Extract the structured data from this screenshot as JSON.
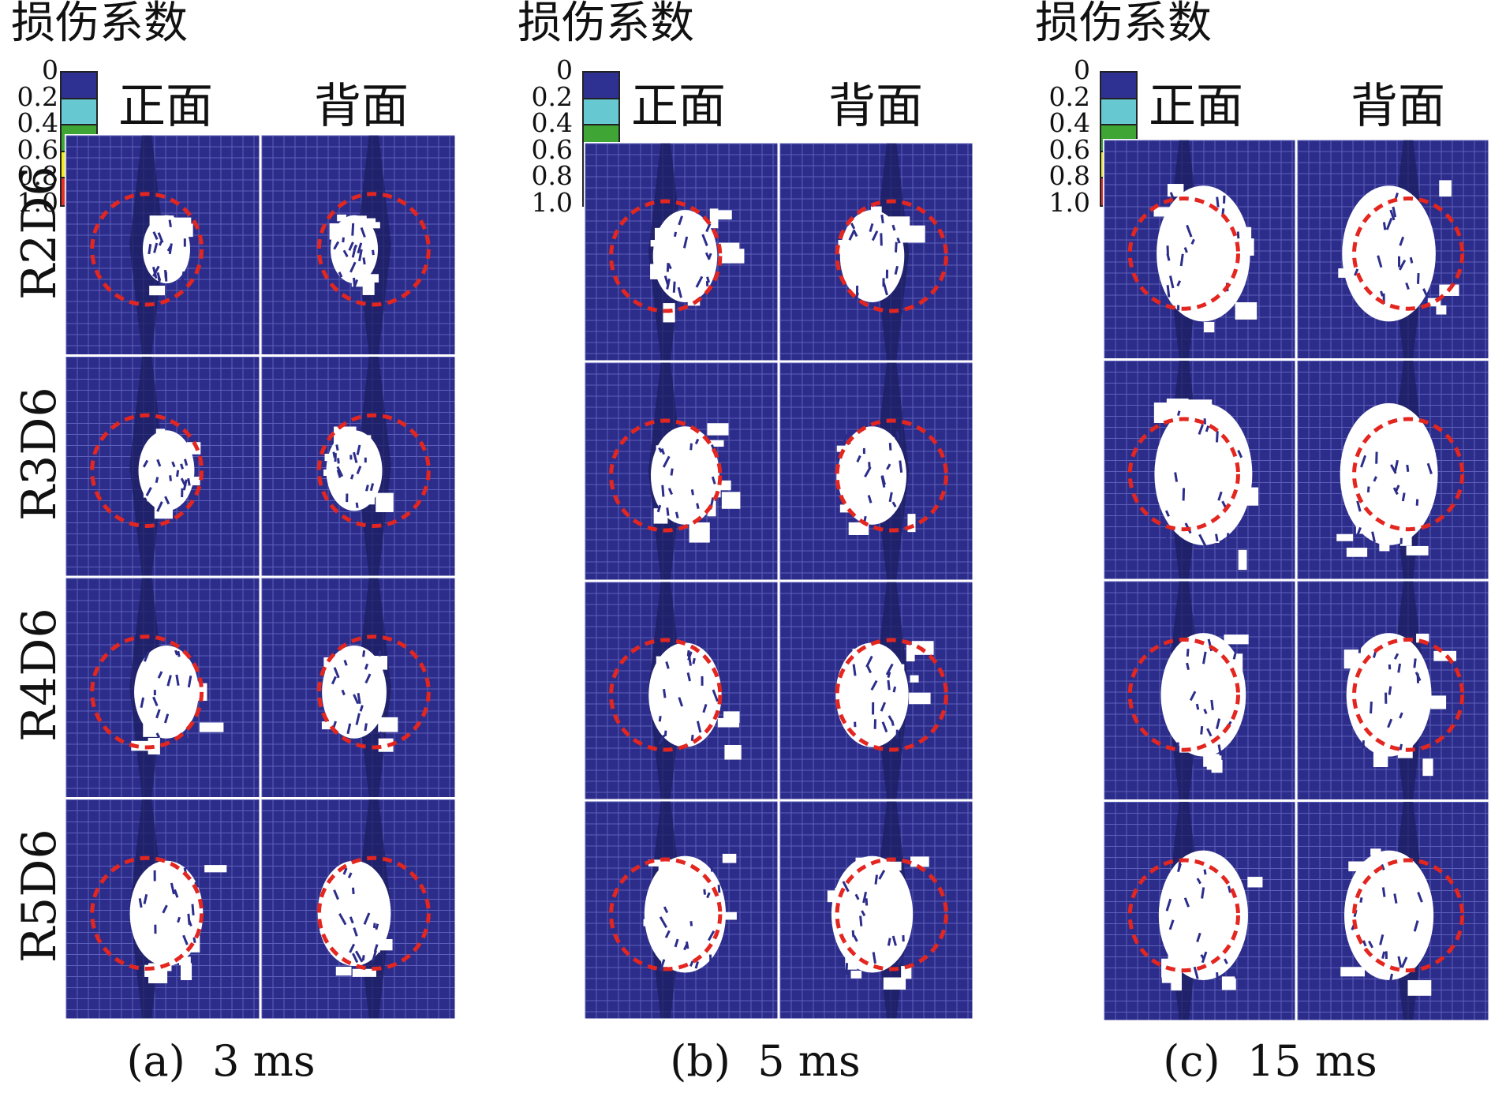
{
  "legend": {
    "title": "损伤系数",
    "labels": [
      "0",
      "0.2",
      "0.4",
      "0.6",
      "0.8",
      "1.0"
    ],
    "colors": [
      "#2e3192",
      "#66c8d0",
      "#3fa535",
      "#f0ea1e",
      "#e63027"
    ]
  },
  "side_labels": {
    "front": "正面",
    "back": "背面"
  },
  "row_labels": [
    "R2D6",
    "R3D6",
    "R4D6",
    "R5D6"
  ],
  "panels": [
    {
      "caption": "(a)  3 ms"
    },
    {
      "caption": "(b)  5 ms"
    },
    {
      "caption": "(c)  15 ms"
    }
  ],
  "colors": {
    "mesh": "#2c2d8a",
    "mesh_line": "#6e71c8",
    "boundary": "#e3261f",
    "damage": "#ffffff"
  }
}
